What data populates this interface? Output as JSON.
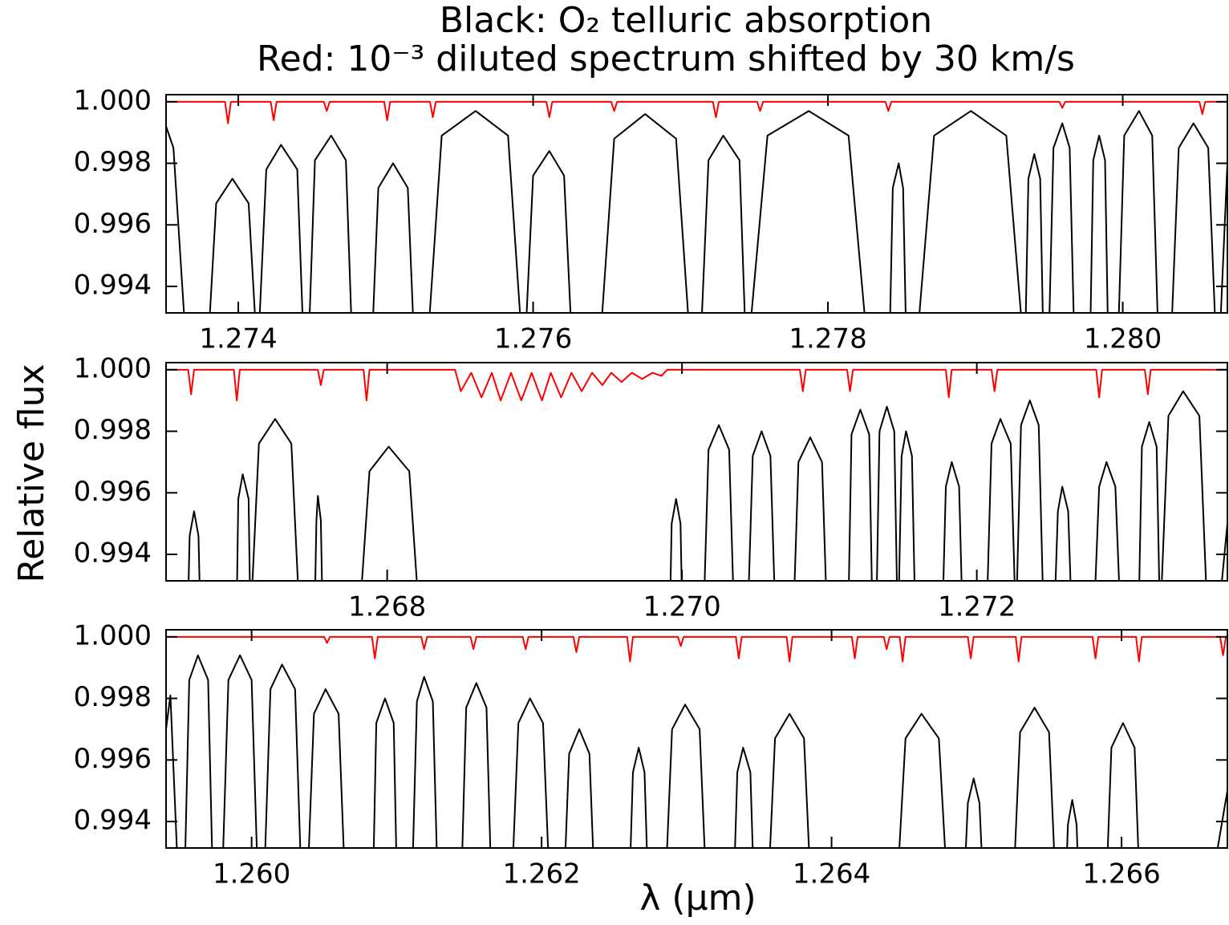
{
  "title": "Black: O₂ telluric absorption",
  "subtitle": "Red: 10⁻³ diluted spectrum shifted by 30 km/s",
  "y_label": "Relative flux",
  "x_label": "λ (μm)",
  "chart_data": [
    {
      "type": "line",
      "xlim": [
        1.27351,
        1.28071
      ],
      "ylim": [
        0.99314,
        1.00023
      ],
      "xticks": [
        1.274,
        1.276,
        1.278,
        {
          "value": 1.28,
          "label": "1.280"
        }
      ],
      "yticks": [
        0.994,
        0.996,
        0.998,
        {
          "value": 1,
          "label": "1.000"
        }
      ],
      "series": [
        {
          "color": "#000000",
          "x": [
            1.27351,
            1.27356,
            1.27364,
            1.2738,
            1.27385,
            1.27396,
            1.27407,
            1.27412,
            1.27414,
            1.27419,
            1.27429,
            1.2744,
            1.27444,
            1.27448,
            1.27452,
            1.27463,
            1.27473,
            1.27477,
            1.27491,
            1.27495,
            1.27505,
            1.27515,
            1.27519,
            1.27529,
            1.27538,
            1.27561,
            1.27583,
            1.27592,
            1.27595,
            1.276,
            1.27611,
            1.27621,
            1.27626,
            1.27646,
            1.27655,
            1.27676,
            1.27697,
            1.27706,
            1.27714,
            1.27719,
            1.27729,
            1.2774,
            1.27744,
            1.27747,
            1.27759,
            1.27787,
            1.27814,
            1.27826,
            1.27842,
            1.27844,
            1.27848,
            1.27851,
            1.27853,
            1.27861,
            1.27872,
            1.27897,
            1.27921,
            1.27932,
            1.27934,
            1.27936,
            1.2794,
            1.27944,
            1.27946,
            1.2795,
            1.27953,
            1.27959,
            1.27964,
            1.27967,
            1.27978,
            1.2798,
            1.27984,
            1.27988,
            1.2799,
            1.27997,
            1.28001,
            1.28011,
            1.2802,
            1.28024,
            1.28033,
            1.28038,
            1.28048,
            1.28058,
            1.28063,
            1.28066,
            1.28071
          ],
          "values": [
            0.9992,
            0.9985,
            0.9925,
            0.9925,
            0.9967,
            0.9975,
            0.9967,
            0.9925,
            0.9925,
            0.9978,
            0.9986,
            0.9978,
            0.9925,
            0.9925,
            0.9981,
            0.9989,
            0.9981,
            0.9925,
            0.9925,
            0.9972,
            0.998,
            0.9972,
            0.9925,
            0.9925,
            0.9989,
            0.9997,
            0.9989,
            0.9925,
            0.9925,
            0.9976,
            0.9984,
            0.9976,
            0.9925,
            0.9925,
            0.9988,
            0.9996,
            0.9988,
            0.9925,
            0.9925,
            0.9981,
            0.9989,
            0.9981,
            0.9925,
            0.9925,
            0.9989,
            0.9997,
            0.9989,
            0.9925,
            0.9925,
            0.9972,
            0.998,
            0.9972,
            0.9925,
            0.9925,
            0.9989,
            0.9997,
            0.9989,
            0.9925,
            0.9925,
            0.9975,
            0.9983,
            0.9975,
            0.9925,
            0.9925,
            0.9985,
            0.9993,
            0.9985,
            0.9925,
            0.9925,
            0.9981,
            0.9989,
            0.9981,
            0.9925,
            0.9925,
            0.9989,
            0.9997,
            0.9989,
            0.9925,
            0.9925,
            0.9985,
            0.9993,
            0.9985,
            0.9925,
            0.9925,
            0.998
          ]
        },
        {
          "color": "#ff0000",
          "x": [
            1.27351,
            1.27391,
            1.27393,
            1.27395,
            1.27422,
            1.27424,
            1.27426,
            1.27458,
            1.2746,
            1.27462,
            1.27499,
            1.27501,
            1.27503,
            1.2753,
            1.27532,
            1.27534,
            1.27609,
            1.27611,
            1.27613,
            1.27653,
            1.27655,
            1.27657,
            1.27722,
            1.27724,
            1.27726,
            1.27752,
            1.27754,
            1.27756,
            1.27839,
            1.27841,
            1.27843,
            1.27957,
            1.27959,
            1.27961,
            1.28052,
            1.28054,
            1.28056,
            1.28071
          ],
          "values": [
            1,
            1,
            0.9993,
            1,
            1,
            0.9994,
            1,
            1,
            0.9997,
            1,
            1,
            0.9994,
            1,
            1,
            0.9995,
            1,
            1,
            0.9995,
            1,
            1,
            0.9997,
            1,
            1,
            0.9995,
            1,
            1,
            0.9997,
            1,
            1,
            0.9997,
            1,
            1,
            0.9998,
            1,
            1,
            0.9996,
            1,
            1
          ]
        }
      ]
    },
    {
      "type": "line",
      "xlim": [
        1.2665,
        1.2737
      ],
      "ylim": [
        0.99314,
        1.00023
      ],
      "xticks": [
        1.268,
        {
          "value": 1.27,
          "label": "1.270"
        },
        1.272
      ],
      "yticks": [
        0.994,
        0.996,
        0.998,
        {
          "value": 1,
          "label": "1.000"
        }
      ],
      "series": [
        {
          "color": "#000000",
          "x": [
            1.26665,
            1.26666,
            1.26669,
            1.26672,
            1.26673,
            1.26698,
            1.26699,
            1.26702,
            1.26706,
            1.26707,
            1.26708,
            1.26713,
            1.26724,
            1.26735,
            1.2674,
            1.26751,
            1.26752,
            1.26753,
            1.26755,
            1.26756,
            1.26782,
            1.26788,
            1.26801,
            1.26815,
            1.26821,
            1.26992,
            1.26993,
            1.26996,
            1.26999,
            1.27,
            1.27015,
            1.27018,
            1.27025,
            1.27032,
            1.27035,
            1.27045,
            1.27048,
            1.27054,
            1.2706,
            1.27063,
            1.27076,
            1.27079,
            1.27087,
            1.27095,
            1.27098,
            1.27113,
            1.27115,
            1.27121,
            1.27127,
            1.27129,
            1.27132,
            1.27134,
            1.27139,
            1.27144,
            1.27146,
            1.27147,
            1.27149,
            1.27152,
            1.27156,
            1.27158,
            1.27177,
            1.27179,
            1.27183,
            1.27188,
            1.2719,
            1.27207,
            1.2721,
            1.27216,
            1.27223,
            1.27226,
            1.27227,
            1.2723,
            1.27236,
            1.27242,
            1.27245,
            1.27253,
            1.27255,
            1.27258,
            1.27262,
            1.27264,
            1.2728,
            1.27283,
            1.27288,
            1.27294,
            1.27297,
            1.2731,
            1.27312,
            1.27317,
            1.27322,
            1.27324,
            1.27325,
            1.2733,
            1.2734,
            1.27351,
            1.27356,
            1.27365,
            1.2737
          ],
          "values": [
            0.9925,
            0.9946,
            0.9954,
            0.9946,
            0.9925,
            0.9925,
            0.9958,
            0.9966,
            0.9958,
            0.9925,
            0.9925,
            0.9976,
            0.9984,
            0.9976,
            0.9925,
            0.9925,
            0.9951,
            0.9959,
            0.9951,
            0.9925,
            0.9925,
            0.9967,
            0.9975,
            0.9967,
            0.9925,
            0.9925,
            0.995,
            0.9958,
            0.995,
            0.9925,
            0.9925,
            0.9974,
            0.9982,
            0.9974,
            0.9925,
            0.9925,
            0.9972,
            0.998,
            0.9972,
            0.9925,
            0.9925,
            0.997,
            0.9978,
            0.997,
            0.9925,
            0.9925,
            0.9979,
            0.9987,
            0.9979,
            0.9925,
            0.9925,
            0.998,
            0.9988,
            0.998,
            0.9925,
            0.9925,
            0.9972,
            0.998,
            0.9972,
            0.9925,
            0.9925,
            0.9962,
            0.997,
            0.9962,
            0.9925,
            0.9925,
            0.9976,
            0.9984,
            0.9976,
            0.9925,
            0.9925,
            0.9982,
            0.999,
            0.9982,
            0.9925,
            0.9925,
            0.9954,
            0.9962,
            0.9954,
            0.9925,
            0.9925,
            0.9962,
            0.997,
            0.9962,
            0.9925,
            0.9925,
            0.9975,
            0.9983,
            0.9975,
            0.9925,
            0.9925,
            0.9985,
            0.9993,
            0.9985,
            0.9925,
            0.9925,
            0.995
          ]
        },
        {
          "color": "#ff0000",
          "x": [
            1.2665,
            1.26665,
            1.26667,
            1.26669,
            1.26696,
            1.26698,
            1.267,
            1.26753,
            1.26755,
            1.26757,
            1.26784,
            1.26786,
            1.26788,
            1.26846,
            1.2685,
            1.26857,
            1.26864,
            1.26871,
            1.26877,
            1.26884,
            1.26891,
            1.26898,
            1.26905,
            1.26911,
            1.26918,
            1.26925,
            1.26932,
            1.26939,
            1.26946,
            1.26952,
            1.26959,
            1.26966,
            1.26973,
            1.2698,
            1.26986,
            1.2699,
            1.2708,
            1.27082,
            1.27084,
            1.27112,
            1.27114,
            1.27116,
            1.27179,
            1.27181,
            1.27183,
            1.2721,
            1.27212,
            1.27214,
            1.27281,
            1.27283,
            1.27285,
            1.27314,
            1.27316,
            1.27318,
            1.2737
          ],
          "values": [
            1,
            1,
            0.9992,
            1,
            1,
            0.999,
            1,
            1,
            0.9995,
            1,
            1,
            0.999,
            1,
            1,
            0.9993,
            0.9999,
            0.9991,
            0.9999,
            0.999,
            0.9999,
            0.999,
            0.9999,
            0.999,
            0.9999,
            0.9991,
            0.9999,
            0.9993,
            0.9999,
            0.9995,
            0.9999,
            0.9996,
            0.9999,
            0.9997,
            0.9999,
            0.9998,
            1,
            1,
            0.9993,
            1,
            1,
            0.9993,
            1,
            1,
            0.9991,
            1,
            1,
            0.9993,
            1,
            1,
            0.9991,
            1,
            1,
            0.9992,
            1,
            1
          ]
        }
      ]
    },
    {
      "type": "line",
      "xlim": [
        1.25941,
        1.26673
      ],
      "ylim": [
        0.99314,
        1.00023
      ],
      "xticks": [
        {
          "value": 1.26,
          "label": "1.260"
        },
        1.262,
        1.264,
        1.266
      ],
      "yticks": [
        0.994,
        0.996,
        0.998,
        {
          "value": 1,
          "label": "1.000"
        }
      ],
      "series": [
        {
          "color": "#000000",
          "x": [
            1.25941,
            1.25944,
            1.25949,
            1.25954,
            1.25957,
            1.25963,
            1.2597,
            1.25973,
            1.2598,
            1.25984,
            1.25992,
            1.26,
            1.26004,
            1.26009,
            1.26013,
            1.26021,
            1.2603,
            1.26034,
            1.26039,
            1.26043,
            1.26051,
            1.2606,
            1.26064,
            1.26084,
            1.26086,
            1.26092,
            1.26098,
            1.261,
            1.26111,
            1.26114,
            1.26119,
            1.26125,
            1.26128,
            1.26145,
            1.26148,
            1.26155,
            1.26162,
            1.26165,
            1.2618,
            1.26184,
            1.26192,
            1.26201,
            1.26205,
            1.26216,
            1.26219,
            1.26226,
            1.26233,
            1.26236,
            1.26261,
            1.26263,
            1.26267,
            1.26271,
            1.26273,
            1.26286,
            1.2629,
            1.26299,
            1.26309,
            1.26313,
            1.26333,
            1.26335,
            1.26339,
            1.26344,
            1.26346,
            1.26357,
            1.26361,
            1.26371,
            1.26381,
            1.26385,
            1.26446,
            1.26451,
            1.26462,
            1.26474,
            1.26479,
            1.26492,
            1.26494,
            1.26498,
            1.26502,
            1.26504,
            1.26526,
            1.2653,
            1.2654,
            1.2655,
            1.26554,
            1.26562,
            1.26563,
            1.26566,
            1.26569,
            1.2657,
            1.2659,
            1.26593,
            1.26601,
            1.26609,
            1.26612,
            1.26664,
            1.26673
          ],
          "values": [
            0.997,
            0.9981,
            0.9925,
            0.9925,
            0.9986,
            0.9994,
            0.9986,
            0.9925,
            0.9925,
            0.9986,
            0.9994,
            0.9986,
            0.9925,
            0.9925,
            0.9983,
            0.9991,
            0.9983,
            0.9925,
            0.9925,
            0.9975,
            0.9983,
            0.9975,
            0.9925,
            0.9925,
            0.9972,
            0.998,
            0.9972,
            0.9925,
            0.9925,
            0.9979,
            0.9987,
            0.9979,
            0.9925,
            0.9925,
            0.9977,
            0.9985,
            0.9977,
            0.9925,
            0.9925,
            0.9972,
            0.998,
            0.9972,
            0.9925,
            0.9925,
            0.9962,
            0.997,
            0.9962,
            0.9925,
            0.9925,
            0.9956,
            0.9964,
            0.9956,
            0.9925,
            0.9925,
            0.997,
            0.9978,
            0.997,
            0.9925,
            0.9925,
            0.9956,
            0.9964,
            0.9956,
            0.9925,
            0.9925,
            0.9967,
            0.9975,
            0.9967,
            0.9925,
            0.9925,
            0.9967,
            0.9975,
            0.9967,
            0.9925,
            0.9925,
            0.9946,
            0.9954,
            0.9946,
            0.9925,
            0.9925,
            0.9969,
            0.9977,
            0.9969,
            0.9925,
            0.9925,
            0.9939,
            0.9947,
            0.9939,
            0.9925,
            0.9925,
            0.9964,
            0.9972,
            0.9964,
            0.9925,
            0.9925,
            0.995
          ]
        },
        {
          "color": "#ff0000",
          "x": [
            1.25941,
            1.2605,
            1.26052,
            1.26054,
            1.26083,
            1.26085,
            1.26087,
            1.26117,
            1.26119,
            1.26121,
            1.26151,
            1.26153,
            1.26155,
            1.26187,
            1.26189,
            1.26191,
            1.26222,
            1.26224,
            1.26226,
            1.26259,
            1.26261,
            1.26263,
            1.26294,
            1.26296,
            1.26298,
            1.26334,
            1.26336,
            1.26338,
            1.26369,
            1.26371,
            1.26373,
            1.26414,
            1.26416,
            1.26418,
            1.26436,
            1.26438,
            1.2644,
            1.26447,
            1.26449,
            1.26451,
            1.26494,
            1.26496,
            1.26498,
            1.26527,
            1.26529,
            1.26531,
            1.2658,
            1.26582,
            1.26584,
            1.2661,
            1.26612,
            1.26614,
            1.26668,
            1.2667,
            1.26672,
            1.26673
          ],
          "values": [
            1,
            1,
            0.9998,
            1,
            1,
            0.9993,
            1,
            1,
            0.9996,
            1,
            1,
            0.9996,
            1,
            1,
            0.9996,
            1,
            1,
            0.9995,
            1,
            1,
            0.9992,
            1,
            1,
            0.9997,
            1,
            1,
            0.9993,
            1,
            1,
            0.9992,
            1,
            1,
            0.9993,
            1,
            1,
            0.9996,
            1,
            1,
            0.9992,
            1,
            1,
            0.9993,
            1,
            1,
            0.9992,
            1,
            1,
            0.9993,
            1,
            1,
            0.9992,
            1,
            1,
            0.9994,
            1,
            1
          ]
        }
      ]
    }
  ]
}
